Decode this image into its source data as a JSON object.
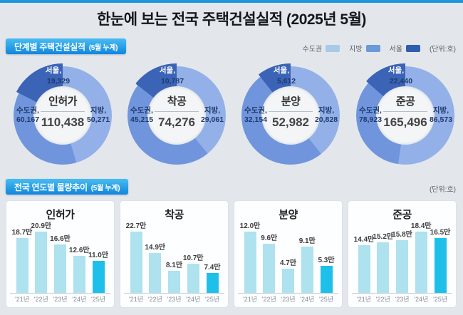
{
  "page_title": "한눈에 보는 전국 주택건설실적 (2025년 5월)",
  "section1": {
    "badge": "단계별 주택건설실적",
    "badge_sub": "(5월 누계)",
    "unit": "(단위:호)",
    "legend": [
      {
        "label": "수도권",
        "color": "#a9c9e9"
      },
      {
        "label": "지방",
        "color": "#6b9ad7"
      },
      {
        "label": "서울",
        "color": "#2e5fae"
      }
    ]
  },
  "section2": {
    "badge": "전국 연도별 물량추이",
    "badge_sub": "(5월 누계)",
    "unit": "(단위:호)"
  },
  "region_labels": {
    "seoul": "서울,",
    "sudogwon": "수도권,",
    "jibang": "지방,"
  },
  "years": [
    "'21년",
    "'22년",
    "'23년",
    "'24년",
    "'25년"
  ],
  "colors": {
    "accent_blue": "#1f97dd",
    "donut_jibang": "#93b1e8",
    "donut_sudogwon": "#7095dd",
    "donut_seoul": "#3b63b6",
    "bar": "#ade2ee",
    "bar_highlight": "#1ec0e9"
  },
  "chart_data": [
    {
      "type": "pie",
      "subtype": "donut",
      "name": "인허가",
      "total": 110438,
      "segments": {
        "seoul": 19329,
        "sudogwon": 60167,
        "jibang": 50271
      },
      "display": {
        "total": "110,438",
        "seoul": "19,329",
        "sudogwon": "60,167",
        "jibang": "50,271"
      }
    },
    {
      "type": "pie",
      "subtype": "donut",
      "name": "착공",
      "total": 74276,
      "segments": {
        "seoul": 10787,
        "sudogwon": 45215,
        "jibang": 29061
      },
      "display": {
        "total": "74,276",
        "seoul": "10,787",
        "sudogwon": "45,215",
        "jibang": "29,061"
      }
    },
    {
      "type": "pie",
      "subtype": "donut",
      "name": "분양",
      "total": 52982,
      "segments": {
        "seoul": 5612,
        "sudogwon": 32154,
        "jibang": 20828
      },
      "display": {
        "total": "52,982",
        "seoul": "5,612",
        "sudogwon": "32,154",
        "jibang": "20,828"
      }
    },
    {
      "type": "pie",
      "subtype": "donut",
      "name": "준공",
      "total": 165496,
      "segments": {
        "seoul": 22440,
        "sudogwon": 78923,
        "jibang": 86573
      },
      "display": {
        "total": "165,496",
        "seoul": "22,440",
        "sudogwon": "78,923",
        "jibang": "86,573"
      }
    },
    {
      "type": "bar",
      "title": "인허가",
      "categories": [
        "'21년",
        "'22년",
        "'23년",
        "'24년",
        "'25년"
      ],
      "values": [
        18.7,
        20.9,
        16.6,
        12.6,
        11.0
      ],
      "value_labels": [
        "18.7만",
        "20.9만",
        "16.6만",
        "12.6만",
        "11.0만"
      ],
      "highlight_index": 4
    },
    {
      "type": "bar",
      "title": "착공",
      "categories": [
        "'21년",
        "'22년",
        "'23년",
        "'24년",
        "'25년"
      ],
      "values": [
        22.7,
        14.9,
        8.1,
        10.7,
        7.4
      ],
      "value_labels": [
        "22.7만",
        "14.9만",
        "8.1만",
        "10.7만",
        "7.4만"
      ],
      "highlight_index": 4
    },
    {
      "type": "bar",
      "title": "분양",
      "categories": [
        "'21년",
        "'22년",
        "'23년",
        "'24년",
        "'25년"
      ],
      "values": [
        12.0,
        9.6,
        4.7,
        9.1,
        5.3
      ],
      "value_labels": [
        "12.0만",
        "9.6만",
        "4.7만",
        "9.1만",
        "5.3만"
      ],
      "highlight_index": 4
    },
    {
      "type": "bar",
      "title": "준공",
      "categories": [
        "'21년",
        "'22년",
        "'23년",
        "'24년",
        "'25년"
      ],
      "values": [
        14.4,
        15.2,
        15.8,
        18.4,
        16.5
      ],
      "value_labels": [
        "14.4만",
        "15.2만",
        "15.8만",
        "18.4만",
        "16.5만"
      ],
      "highlight_index": 4
    }
  ]
}
